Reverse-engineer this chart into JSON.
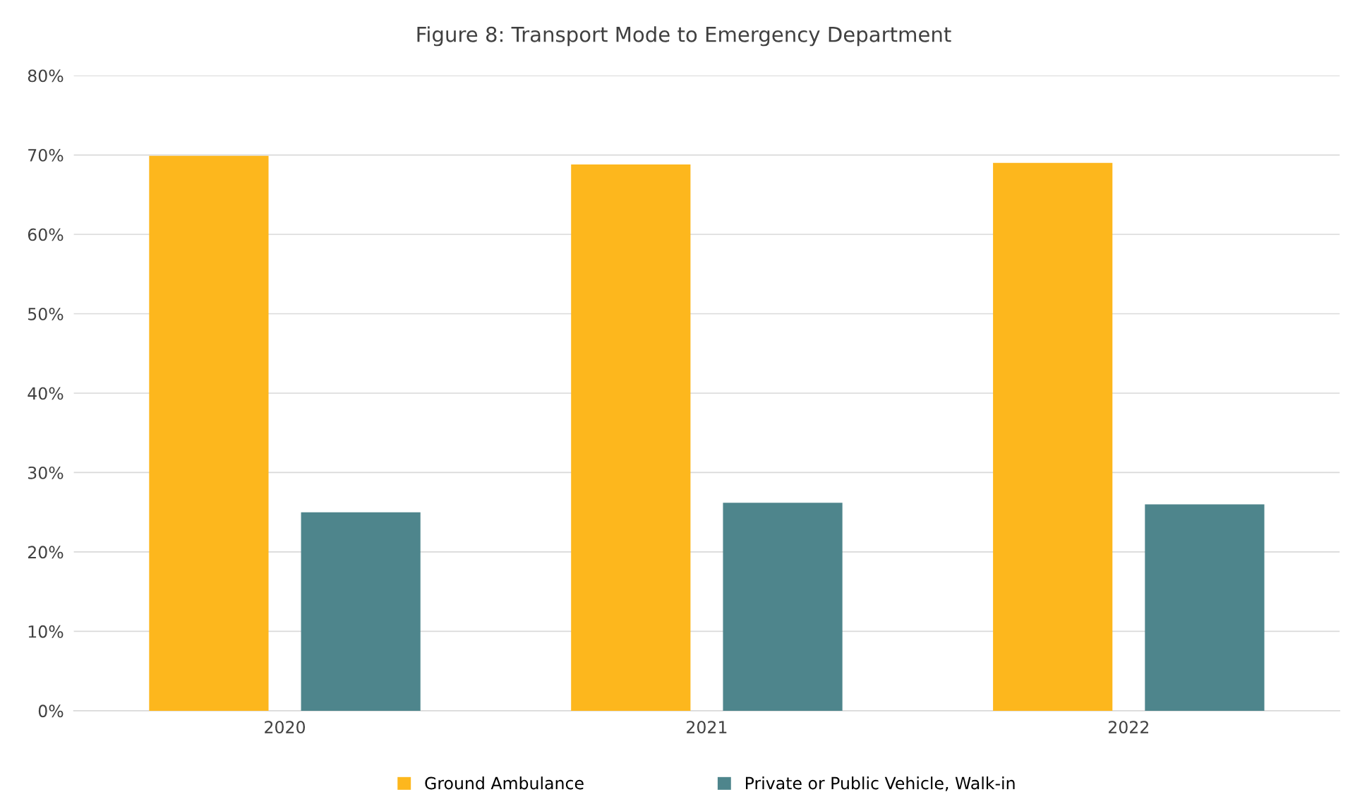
{
  "chart_data": {
    "type": "bar",
    "title": "Figure 8: Transport Mode to Emergency Department",
    "categories": [
      "2020",
      "2021",
      "2022"
    ],
    "series": [
      {
        "name": "Ground Ambulance",
        "color": "#fdb71d",
        "values": [
          69.9,
          68.8,
          69.0
        ]
      },
      {
        "name": "Private or Public Vehicle, Walk-in",
        "color": "#4e858c",
        "values": [
          25.0,
          26.2,
          26.0
        ]
      }
    ],
    "ylim": [
      0,
      80
    ],
    "yticks": [
      {
        "value": 0,
        "label": "0%"
      },
      {
        "value": 10,
        "label": "10%"
      },
      {
        "value": 20,
        "label": "20%"
      },
      {
        "value": 30,
        "label": "30%"
      },
      {
        "value": 40,
        "label": "40%"
      },
      {
        "value": 50,
        "label": "50%"
      },
      {
        "value": 60,
        "label": "60%"
      },
      {
        "value": 70,
        "label": "70%"
      },
      {
        "value": 80,
        "label": "80%"
      }
    ],
    "grid": "y",
    "legend": "bottom"
  }
}
